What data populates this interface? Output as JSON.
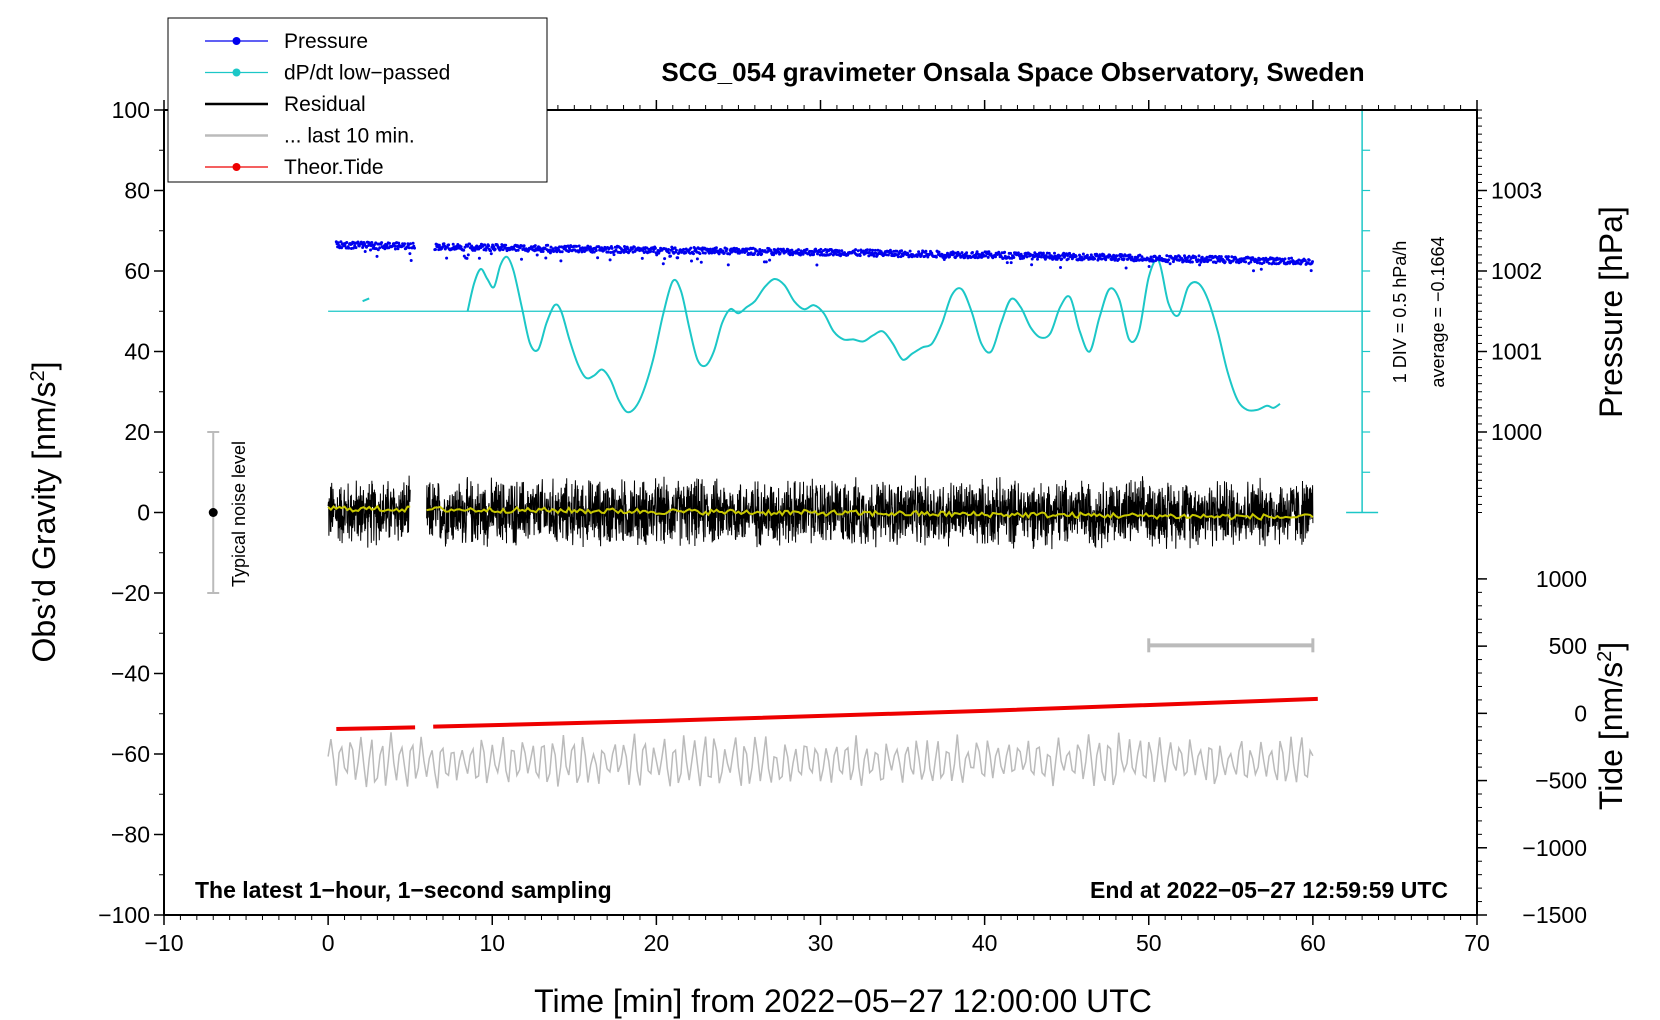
{
  "chart_data": {
    "type": "line",
    "title": "SCG_054 gravimeter Onsala Space Observatory, Sweden",
    "xlabel": "Time [min] from 2022−05−27 12:00:00 UTC",
    "ylabel_base": "Obs’d Gravity [nm/s",
    "ylabel_sup": "2",
    "ylabel_end": "]",
    "right_ylabel_pressure": "Pressure [hPa]",
    "right_ylabel_tide_base": "Tide [nm/s",
    "right_ylabel_tide_sup": "2",
    "right_ylabel_tide_end": "]",
    "xlim": [
      -10,
      70
    ],
    "ylim": [
      -100,
      100
    ],
    "x_ticks": [
      -10,
      0,
      10,
      20,
      30,
      40,
      50,
      60,
      70
    ],
    "x_tick_labels": [
      "−10",
      "0",
      "10",
      "20",
      "30",
      "40",
      "50",
      "60",
      "70"
    ],
    "y_ticks": [
      -100,
      -80,
      -60,
      -40,
      -20,
      0,
      20,
      40,
      60,
      80,
      100
    ],
    "y_tick_labels": [
      "−100",
      "−80",
      "−60",
      "−40",
      "−20",
      "0",
      "20",
      "40",
      "60",
      "80",
      "100"
    ],
    "pressure_axis": {
      "ticks": [
        1000,
        1001,
        1002,
        1003
      ],
      "tick_labels": [
        "1000",
        "1001",
        "1002",
        "1003"
      ],
      "gravity_equivalent": {
        "1000": 20,
        "1001": 40,
        "1002": 60,
        "1003": 80
      }
    },
    "tide_axis": {
      "ticks": [
        1000,
        500,
        0,
        -500,
        -1000,
        -1500
      ],
      "tick_labels": [
        "1000",
        "500",
        "0",
        "−500",
        "−1000",
        "−1500"
      ],
      "gravity_equivalent_of_1000": -16.5,
      "gravity_equivalent_of_minus_1500": -100
    },
    "legend": {
      "placement": "top-left",
      "entries": [
        {
          "label": "Pressure",
          "color": "#0000ee",
          "marker": "dot"
        },
        {
          "label": "dP/dt low−passed",
          "color": "#1cc7c7",
          "marker": "dot"
        },
        {
          "label": "Residual",
          "color": "#000000",
          "marker": "none"
        },
        {
          "label": "... last 10 min.",
          "color": "#bbbbbb",
          "marker": "none"
        },
        {
          "label": "Theor.Tide",
          "color": "#ee0000",
          "marker": "dot"
        }
      ]
    },
    "series": [
      {
        "name": "Pressure",
        "color": "#0000ee",
        "segments": [
          [
            0.5,
            2.0
          ],
          [
            6.5,
            60.0
          ]
        ],
        "x": [
          0.5,
          5,
          10,
          15,
          20,
          25,
          30,
          35,
          40,
          45,
          50,
          55,
          60
        ],
        "values": [
          66.5,
          66.2,
          65.8,
          65.5,
          65.2,
          64.9,
          64.7,
          64.3,
          64.0,
          63.6,
          63.2,
          62.8,
          62.3
        ]
      },
      {
        "name": "dP/dt low−passed",
        "color": "#1cc7c7",
        "baseline": 50,
        "x": [
          2.1,
          2.5,
          8.5,
          8.9,
          9.3,
          9.7,
          10.1,
          10.5,
          10.9,
          11.3,
          11.8,
          12.3,
          12.8,
          13.3,
          13.8,
          14.2,
          14.7,
          15.2,
          15.7,
          16.2,
          16.7,
          17.2,
          17.7,
          18.2,
          18.7,
          19.2,
          19.8,
          20.4,
          21.0,
          21.5,
          22.0,
          22.5,
          23.0,
          23.5,
          24.0,
          24.5,
          25.0,
          25.5,
          26.0,
          26.6,
          27.2,
          27.8,
          28.4,
          29.0,
          29.6,
          30.2,
          30.8,
          31.4,
          32.0,
          32.6,
          33.2,
          33.8,
          34.4,
          35.0,
          35.6,
          36.2,
          36.8,
          37.4,
          38.0,
          38.6,
          39.2,
          39.8,
          40.4,
          41.0,
          41.6,
          42.2,
          42.8,
          43.4,
          44.0,
          44.6,
          45.2,
          45.8,
          46.4,
          47.0,
          47.6,
          48.2,
          48.8,
          49.4,
          50.0,
          50.6,
          51.2,
          51.8,
          52.4,
          53.0,
          53.6,
          54.2,
          54.8,
          55.4,
          56.0,
          56.6,
          57.2,
          57.6,
          58.0
        ],
        "values": [
          52.5,
          53.2,
          50.0,
          57.0,
          60.5,
          58.0,
          56.0,
          61.5,
          63.5,
          60.0,
          51.0,
          42.0,
          40.5,
          47.0,
          51.5,
          50.0,
          43.0,
          37.0,
          33.5,
          34.0,
          35.5,
          33.0,
          28.0,
          25.0,
          26.0,
          30.0,
          38.0,
          49.0,
          57.5,
          55.0,
          46.0,
          38.0,
          36.5,
          40.0,
          47.0,
          50.5,
          49.5,
          51.0,
          52.5,
          56.0,
          58.0,
          56.5,
          52.5,
          50.5,
          51.5,
          49.5,
          45.0,
          43.0,
          43.0,
          42.5,
          44.0,
          45.0,
          42.0,
          38.0,
          39.5,
          41.0,
          42.0,
          47.0,
          54.0,
          55.5,
          50.0,
          42.0,
          40.0,
          47.0,
          53.0,
          51.0,
          46.0,
          43.5,
          44.5,
          51.0,
          53.5,
          45.0,
          40.0,
          48.5,
          55.5,
          53.0,
          43.0,
          45.0,
          58.5,
          62.5,
          52.0,
          49.0,
          56.0,
          57.0,
          53.0,
          45.0,
          35.0,
          28.0,
          25.5,
          25.5,
          26.5,
          26.0,
          27.0
        ]
      },
      {
        "name": "Residual",
        "color": "#000000",
        "segments": [
          [
            0,
            5
          ],
          [
            6,
            60
          ]
        ],
        "approx_level": 0,
        "approx_amplitude": 8,
        "max_excursion": 12
      },
      {
        "name": "Residual smoothed",
        "color": "#c8c800",
        "x": [
          0,
          5,
          6,
          20,
          40,
          60
        ],
        "values": [
          1.0,
          1.0,
          0.8,
          0.3,
          -0.3,
          -1.2
        ]
      },
      {
        "name": "Theor.Tide",
        "color": "#ee0000",
        "segments": [
          [
            0.5,
            5.3
          ],
          [
            6.4,
            60.3
          ]
        ],
        "x": [
          0.5,
          5.3,
          6.4,
          20,
          40,
          60.3
        ],
        "values": [
          -53.8,
          -53.4,
          -53.2,
          -51.8,
          -49.3,
          -46.3
        ]
      },
      {
        "name": "... last 10 min.",
        "color": "#bbbbbb",
        "approx_level": -62,
        "approx_amplitude": 6
      }
    ],
    "last10min_bracket": {
      "x": [
        50,
        60
      ],
      "y": -33
    },
    "noise_level": {
      "label": "Typical noise level",
      "x": -7,
      "center": 0,
      "low": -20,
      "high": 20
    },
    "pressure_scale_bar": {
      "x": 63,
      "y_low": 0,
      "y_high": 100,
      "label_div": "1 DIV = 0.5 hPa/h",
      "label_avg": "average = −0.1664"
    },
    "annotations": {
      "bottom_left": "The latest 1−hour, 1−second sampling",
      "bottom_right": "End at 2022−05−27 12:59:59 UTC"
    },
    "grid": false
  }
}
